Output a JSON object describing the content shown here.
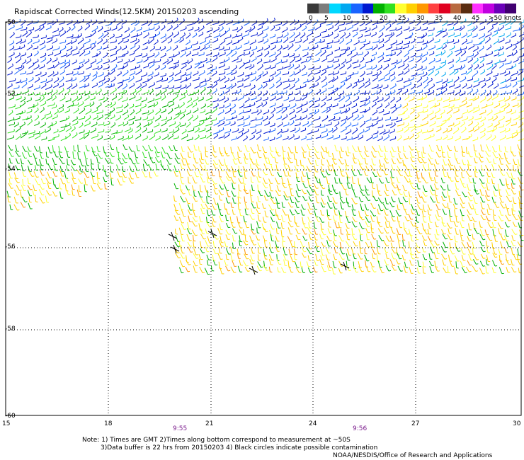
{
  "title": "Rapidscat Corrected Winds(12.5KM) 20150203 ascending",
  "legend": {
    "colors": [
      "#3a3a3a",
      "#7c7c7c",
      "#00d8ff",
      "#00a8f0",
      "#1a64ff",
      "#0018d0",
      "#00b000",
      "#30e020",
      "#ffff30",
      "#ffd000",
      "#ff9800",
      "#ff4040",
      "#e00020",
      "#b86a40",
      "#5a2c10",
      "#ff30ff",
      "#c000e0",
      "#6a00b8",
      "#400070"
    ],
    "labels": [
      "0",
      "5",
      "10",
      "15",
      "20",
      "25",
      "30",
      "35",
      "40",
      "45",
      ">50 knots"
    ]
  },
  "axes": {
    "lat_labels": [
      "-50",
      "-52",
      "-54",
      "-56",
      "-58",
      "-60"
    ],
    "lon_labels": [
      "15",
      "18",
      "21",
      "24",
      "27",
      "30"
    ]
  },
  "times": [
    "9:55",
    "9:56"
  ],
  "notes": [
    "Note: 1) Times are GMT 2)Times along bottom correspond to measurement at ~50S",
    "3)Data buffer is 22 hrs from 20150203 4) Black circles indicate possible contamination",
    "NOAA/NESDIS/Office of Research and Applications"
  ],
  "colors": {
    "grid": "#000000",
    "barb_slow": "#0018d0",
    "barb_mid": "#00b000",
    "barb_fast": "#ffd000"
  }
}
